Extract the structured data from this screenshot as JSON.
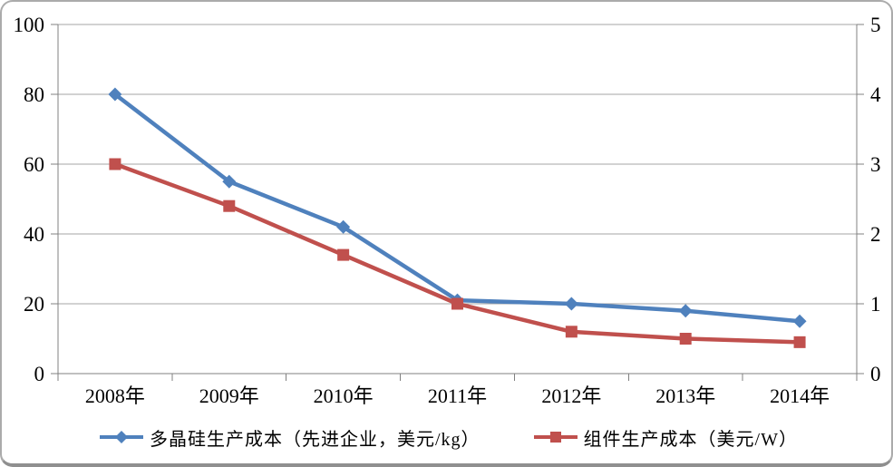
{
  "chart_data": {
    "type": "line",
    "title": "",
    "categories": [
      "2008年",
      "2009年",
      "2010年",
      "2011年",
      "2012年",
      "2013年",
      "2014年"
    ],
    "series": [
      {
        "name": "多晶硅生产成本（先进企业，美元/kg）",
        "axis": "left",
        "color": "#4F81BD",
        "marker": "diamond",
        "values": [
          80,
          55,
          42,
          21,
          20,
          18,
          15
        ]
      },
      {
        "name": "组件生产成本（美元/W）",
        "axis": "right",
        "color": "#C0504D",
        "marker": "square",
        "values": [
          3.0,
          2.4,
          1.7,
          1.0,
          0.6,
          0.5,
          0.45
        ]
      }
    ],
    "left_axis": {
      "min": 0,
      "max": 100,
      "ticks": [
        0,
        20,
        40,
        60,
        80,
        100
      ]
    },
    "right_axis": {
      "min": 0,
      "max": 5,
      "ticks": [
        0,
        1,
        2,
        3,
        4,
        5
      ]
    },
    "grid": true,
    "legend_position": "bottom",
    "colors": {
      "gridline": "#a6a6a6",
      "axis": "#808080",
      "text": "#000000"
    }
  }
}
